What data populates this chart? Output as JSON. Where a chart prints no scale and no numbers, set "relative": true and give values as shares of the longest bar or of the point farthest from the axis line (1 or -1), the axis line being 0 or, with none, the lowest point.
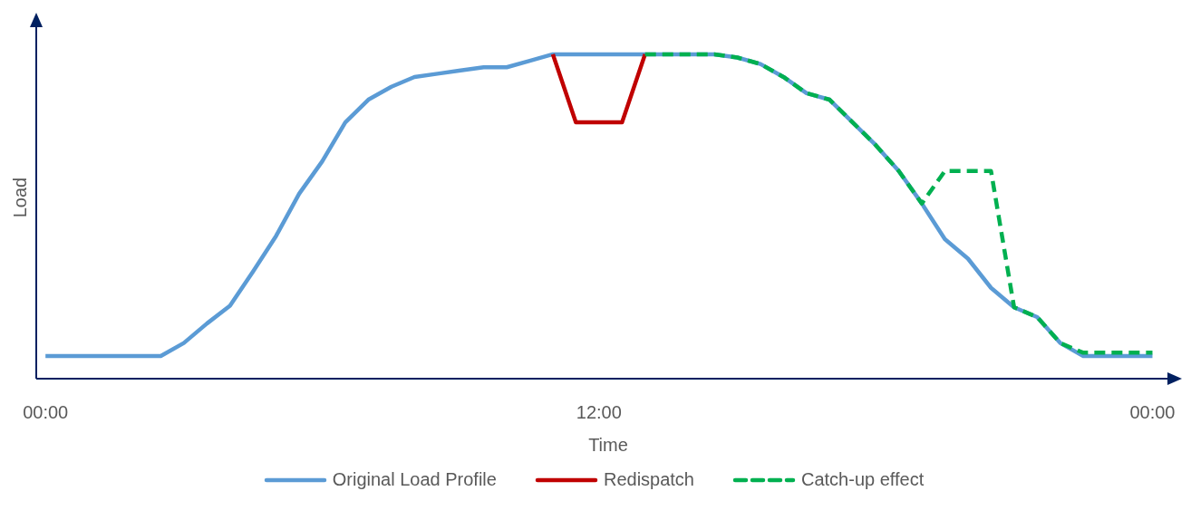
{
  "chart_data": {
    "type": "line",
    "relative": true,
    "xlabel": "Time",
    "ylabel": "Load",
    "xlim": [
      -0.2,
      24.6
    ],
    "xticks": [
      {
        "value": 0,
        "label": "00:00"
      },
      {
        "value": 12,
        "label": "12:00"
      },
      {
        "value": 24,
        "label": "00:00"
      }
    ],
    "legend": "bottom",
    "marker": "none",
    "series": [
      {
        "name": "Original Load Profile",
        "color": "#5b9bd5",
        "line_style": "solid",
        "x": [
          0,
          0.5,
          1,
          1.5,
          2,
          2.5,
          3,
          3.5,
          4,
          4.5,
          5,
          5.5,
          6,
          6.5,
          7,
          7.5,
          8,
          8.5,
          9,
          9.5,
          10,
          10.5,
          11,
          11.5,
          12,
          12.5,
          13,
          13.5,
          14,
          14.5,
          15,
          15.5,
          16,
          16.5,
          17,
          17.5,
          18,
          18.5,
          19,
          19.5,
          20,
          20.5,
          21,
          21.5,
          22,
          22.5,
          23,
          23.5,
          24
        ],
        "values": [
          0.07,
          0.07,
          0.07,
          0.07,
          0.07,
          0.07,
          0.11,
          0.17,
          0.225,
          0.33,
          0.44,
          0.57,
          0.67,
          0.79,
          0.86,
          0.9,
          0.93,
          0.94,
          0.95,
          0.96,
          0.96,
          0.98,
          1,
          1,
          1,
          1,
          1,
          1,
          1,
          1,
          0.99,
          0.97,
          0.93,
          0.88,
          0.86,
          0.79,
          0.72,
          0.64,
          0.54,
          0.43,
          0.37,
          0.28,
          0.22,
          0.19,
          0.11,
          0.07,
          0.07,
          0.07,
          0.07
        ]
      },
      {
        "name": "Redispatch",
        "color": "#c00000",
        "line_style": "solid",
        "x": [
          11,
          11.5,
          12.5,
          13
        ],
        "values": [
          1,
          0.79,
          0.79,
          1
        ]
      },
      {
        "name": "Catch-up effect",
        "color": "#00b050",
        "line_style": "dashed",
        "x": [
          13,
          13.5,
          14,
          14.5,
          15,
          15.5,
          16,
          16.5,
          17,
          17.5,
          18,
          18.5,
          19,
          19.5,
          20,
          20.5,
          21,
          21.5,
          22,
          22.5,
          23,
          23.5,
          24
        ],
        "values": [
          1,
          1,
          1,
          1,
          0.99,
          0.97,
          0.93,
          0.88,
          0.86,
          0.79,
          0.72,
          0.64,
          0.54,
          0.64,
          0.64,
          0.64,
          0.22,
          0.19,
          0.11,
          0.08,
          0.08,
          0.08,
          0.08
        ]
      }
    ]
  }
}
